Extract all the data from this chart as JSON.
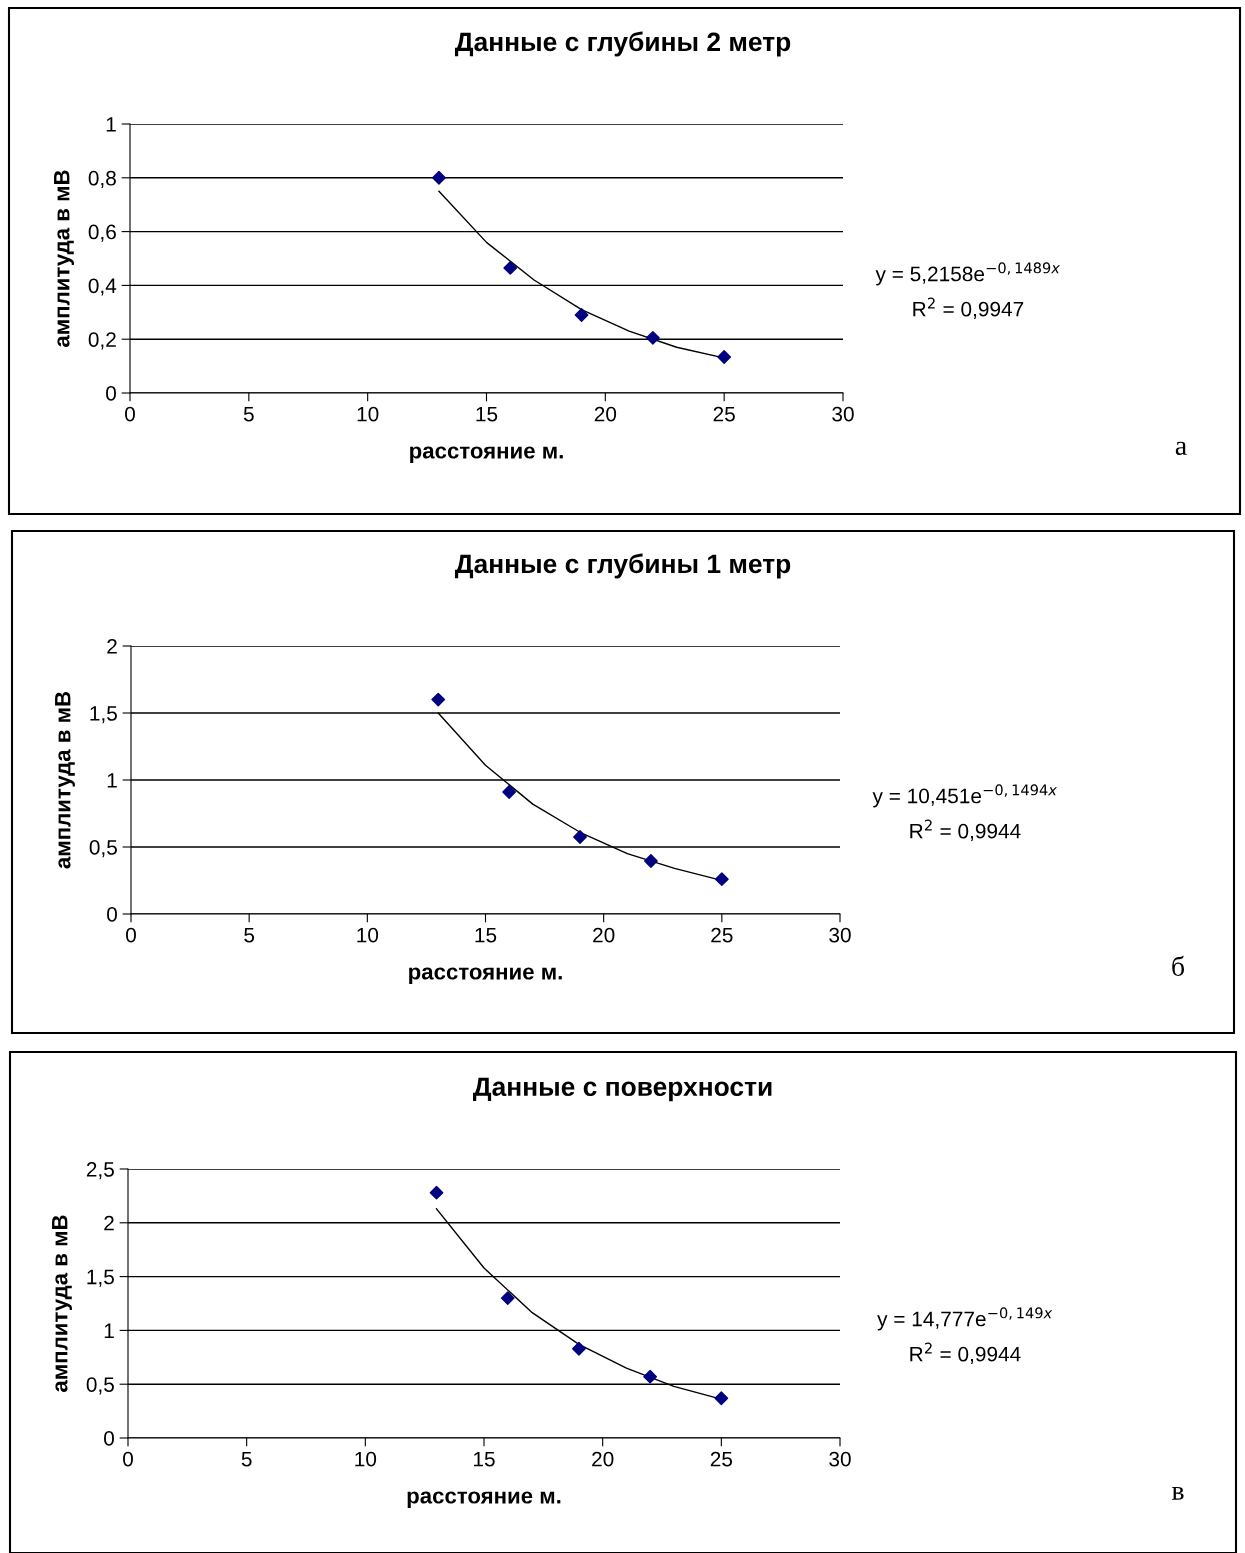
{
  "chart_data": [
    {
      "type": "scatter",
      "title": "Данные с глубины 2 метр",
      "xlabel": "расстояние м.",
      "ylabel": "амплитуда в мВ",
      "xlim": [
        0,
        30
      ],
      "xticks": [
        0,
        5,
        10,
        15,
        20,
        25,
        30
      ],
      "ylim": [
        0,
        1
      ],
      "yticks": [
        0,
        {
          "value": 0.2,
          "label": "0,2"
        },
        {
          "value": 0.4,
          "label": "0,4"
        },
        {
          "value": 0.6,
          "label": "0,6"
        },
        {
          "value": 0.8,
          "label": "0,8"
        },
        1
      ],
      "grid": "y",
      "legend": false,
      "series": [
        {
          "marker": "diamond",
          "color": "#000080",
          "x": [
            13,
            16,
            19,
            22,
            25
          ],
          "values": [
            0.8,
            0.465,
            0.29,
            0.205,
            0.134
          ]
        },
        {
          "type": "line",
          "color": "#000000",
          "line_style": "solid",
          "x": [
            13,
            15,
            17,
            19,
            21,
            23,
            25
          ],
          "values": [
            0.75,
            0.56,
            0.42,
            0.31,
            0.23,
            0.17,
            0.13
          ]
        }
      ],
      "annotations": [
        "y = 5,2158e$^{−0,1489x}$",
        "R$^{2}$ = 0,9947",
        "а"
      ]
    },
    {
      "type": "scatter",
      "title": "Данные с глубины 1 метр",
      "xlabel": "расстояние м.",
      "ylabel": "амплитуда в мВ",
      "xlim": [
        0,
        30
      ],
      "xticks": [
        0,
        5,
        10,
        15,
        20,
        25,
        30
      ],
      "ylim": [
        0,
        2
      ],
      "yticks": [
        0,
        {
          "value": 0.5,
          "label": "0,5"
        },
        1,
        {
          "value": 1.5,
          "label": "1,5"
        },
        2
      ],
      "grid": "y",
      "legend": false,
      "series": [
        {
          "marker": "diamond",
          "color": "#000080",
          "x": [
            13,
            16,
            19,
            22,
            25
          ],
          "values": [
            1.6,
            0.91,
            0.575,
            0.395,
            0.26
          ]
        },
        {
          "type": "line",
          "color": "#000000",
          "line_style": "solid",
          "x": [
            13,
            15,
            17,
            19,
            21,
            23,
            25
          ],
          "values": [
            1.5,
            1.11,
            0.82,
            0.61,
            0.45,
            0.34,
            0.25
          ]
        }
      ],
      "annotations": [
        "y = 10,451e$^{−0,1494x}$",
        "R$^{2}$ = 0,9944",
        "б"
      ]
    },
    {
      "type": "scatter",
      "title": "Данные с поверхности",
      "xlabel": "расстояние м.",
      "ylabel": "амплитуда в мВ",
      "xlim": [
        0,
        30
      ],
      "xticks": [
        0,
        5,
        10,
        15,
        20,
        25,
        30
      ],
      "ylim": [
        0,
        2.5
      ],
      "yticks": [
        0,
        {
          "value": 0.5,
          "label": "0,5"
        },
        1,
        {
          "value": 1.5,
          "label": "1,5"
        },
        2,
        {
          "value": 2.5,
          "label": "2,5"
        }
      ],
      "grid": "y",
      "legend": false,
      "series": [
        {
          "marker": "diamond",
          "color": "#000080",
          "x": [
            13,
            16,
            19,
            22,
            25
          ],
          "values": [
            2.28,
            1.3,
            0.83,
            0.57,
            0.37
          ]
        },
        {
          "type": "line",
          "color": "#000000",
          "line_style": "solid",
          "x": [
            13,
            15,
            17,
            19,
            21,
            23,
            25
          ],
          "values": [
            2.13,
            1.58,
            1.17,
            0.87,
            0.65,
            0.48,
            0.36
          ]
        }
      ],
      "annotations": [
        "y = 14,777e$^{−0,149x}$",
        "R$^{2}$ = 0,9944",
        "в"
      ]
    }
  ]
}
